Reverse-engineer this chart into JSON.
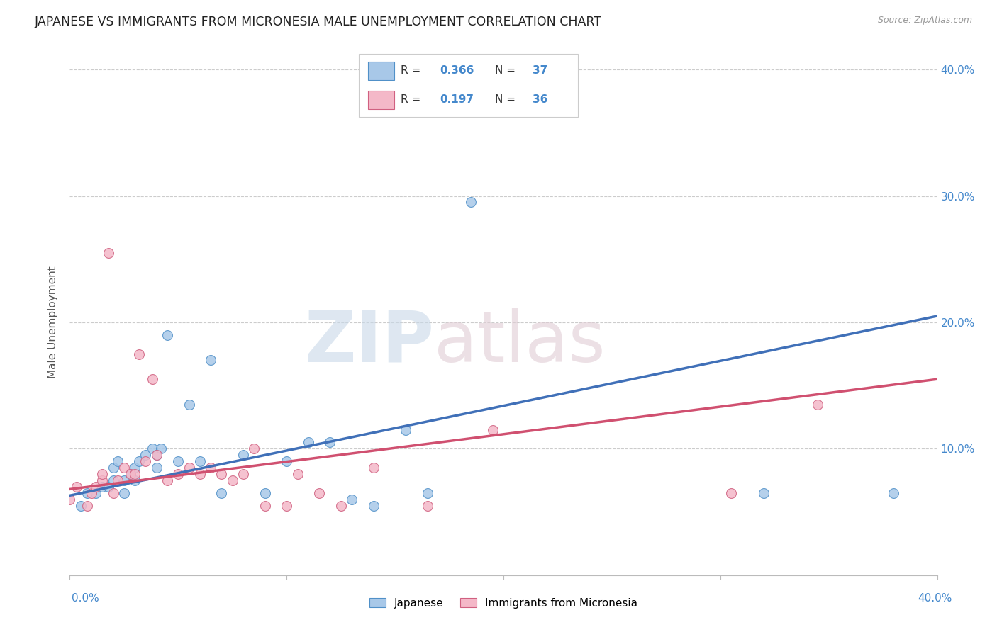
{
  "title": "JAPANESE VS IMMIGRANTS FROM MICRONESIA MALE UNEMPLOYMENT CORRELATION CHART",
  "source": "Source: ZipAtlas.com",
  "ylabel": "Male Unemployment",
  "right_yticklabels": [
    "",
    "10.0%",
    "20.0%",
    "30.0%",
    "40.0%"
  ],
  "xmin": 0.0,
  "xmax": 0.4,
  "ymin": 0.0,
  "ymax": 0.4,
  "legend_R_blue": "0.366",
  "legend_N_blue": "37",
  "legend_R_pink": "0.197",
  "legend_N_pink": "36",
  "blue_color": "#a8c8e8",
  "pink_color": "#f4b8c8",
  "blue_edge": "#5090c8",
  "pink_edge": "#d06080",
  "line_blue": "#4070b8",
  "line_pink": "#d05070",
  "japanese_x": [
    0.005,
    0.008,
    0.012,
    0.015,
    0.018,
    0.02,
    0.02,
    0.022,
    0.025,
    0.025,
    0.028,
    0.03,
    0.03,
    0.032,
    0.035,
    0.038,
    0.04,
    0.04,
    0.042,
    0.045,
    0.05,
    0.055,
    0.06,
    0.065,
    0.07,
    0.08,
    0.09,
    0.1,
    0.11,
    0.12,
    0.13,
    0.14,
    0.155,
    0.165,
    0.185,
    0.32,
    0.38
  ],
  "japanese_y": [
    0.055,
    0.065,
    0.065,
    0.07,
    0.07,
    0.075,
    0.085,
    0.09,
    0.065,
    0.075,
    0.08,
    0.075,
    0.085,
    0.09,
    0.095,
    0.1,
    0.085,
    0.095,
    0.1,
    0.19,
    0.09,
    0.135,
    0.09,
    0.17,
    0.065,
    0.095,
    0.065,
    0.09,
    0.105,
    0.105,
    0.06,
    0.055,
    0.115,
    0.065,
    0.295,
    0.065,
    0.065
  ],
  "micronesia_x": [
    0.0,
    0.003,
    0.008,
    0.01,
    0.012,
    0.015,
    0.015,
    0.018,
    0.02,
    0.022,
    0.025,
    0.028,
    0.03,
    0.032,
    0.035,
    0.038,
    0.04,
    0.045,
    0.05,
    0.055,
    0.06,
    0.065,
    0.07,
    0.075,
    0.08,
    0.085,
    0.09,
    0.1,
    0.105,
    0.115,
    0.125,
    0.14,
    0.165,
    0.195,
    0.305,
    0.345
  ],
  "micronesia_y": [
    0.06,
    0.07,
    0.055,
    0.065,
    0.07,
    0.075,
    0.08,
    0.255,
    0.065,
    0.075,
    0.085,
    0.08,
    0.08,
    0.175,
    0.09,
    0.155,
    0.095,
    0.075,
    0.08,
    0.085,
    0.08,
    0.085,
    0.08,
    0.075,
    0.08,
    0.1,
    0.055,
    0.055,
    0.08,
    0.065,
    0.055,
    0.085,
    0.055,
    0.115,
    0.065,
    0.135
  ],
  "blue_line_x": [
    0.0,
    0.4
  ],
  "blue_line_y": [
    0.063,
    0.205
  ],
  "pink_line_x": [
    0.0,
    0.4
  ],
  "pink_line_y": [
    0.068,
    0.155
  ]
}
